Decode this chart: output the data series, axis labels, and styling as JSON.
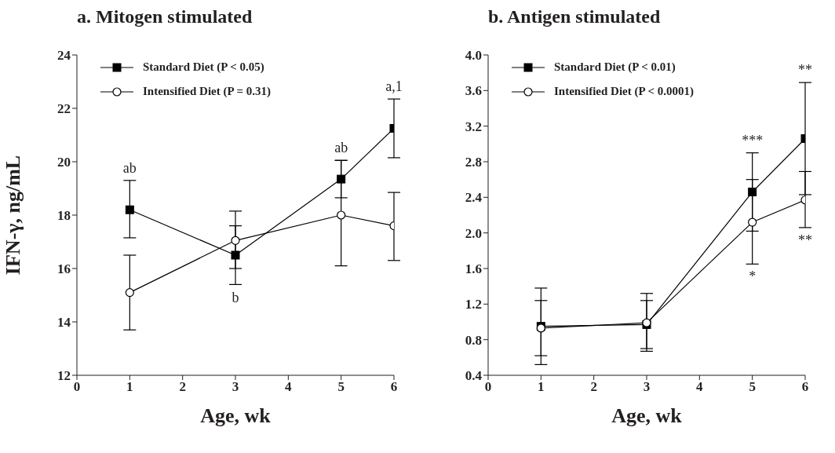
{
  "chart_data": [
    {
      "type": "line",
      "title": "a. Mitogen stimulated",
      "xlabel": "Age, wk",
      "ylabel": "IFN-γ, ng/mL",
      "x": [
        1,
        3,
        5,
        6
      ],
      "xlim": [
        0,
        6
      ],
      "xticks": [
        0,
        1,
        2,
        3,
        4,
        5,
        6
      ],
      "ylim": [
        12,
        24
      ],
      "yticks": [
        12,
        14,
        16,
        18,
        20,
        22,
        24
      ],
      "series": [
        {
          "name": "Standard Diet (P < 0.05)",
          "color": "#000000",
          "marker": "square",
          "values": [
            18.2,
            16.5,
            19.35,
            21.25
          ],
          "errors": [
            [
              17.15,
              19.3
            ],
            [
              15.4,
              17.6
            ],
            [
              18.65,
              20.05
            ],
            [
              20.15,
              22.35
            ]
          ]
        },
        {
          "name": "Intensified Diet (P = 0.31)",
          "color": "#000000",
          "marker": "circle",
          "values": [
            15.1,
            17.05,
            18.0,
            17.6
          ],
          "errors": [
            [
              13.7,
              16.5
            ],
            [
              16.0,
              18.15
            ],
            [
              16.1,
              20.05
            ],
            [
              16.3,
              18.85
            ]
          ]
        }
      ],
      "annotations": [
        {
          "text": "ab",
          "x": 1,
          "y": 18.2
        },
        {
          "text": "b",
          "x": 3,
          "y": 16.5
        },
        {
          "text": "ab",
          "x": 5,
          "y": 19.35
        },
        {
          "text": "a,1",
          "x": 6,
          "y": 21.25
        }
      ],
      "legend": "top left",
      "grid": false
    },
    {
      "type": "line",
      "title": "b. Antigen stimulated",
      "xlabel": "Age, wk",
      "x": [
        1,
        3,
        5,
        6
      ],
      "xlim": [
        0,
        6
      ],
      "xticks": [
        0,
        1,
        2,
        3,
        4,
        5,
        6
      ],
      "ylim": [
        0.4,
        4.0
      ],
      "yticks": [
        {
          "value": 0.4,
          "label": "0.4"
        },
        {
          "value": 0.8,
          "label": "0.8"
        },
        {
          "value": 1.2,
          "label": "1.2"
        },
        {
          "value": 1.6,
          "label": "1.6"
        },
        {
          "value": 2.0,
          "label": "2.0"
        },
        {
          "value": 2.4,
          "label": "2.4"
        },
        {
          "value": 2.8,
          "label": "2.8"
        },
        {
          "value": 3.2,
          "label": "3.2"
        },
        {
          "value": 3.6,
          "label": "3.6"
        },
        {
          "value": 4.0,
          "label": "4.0"
        }
      ],
      "series": [
        {
          "name": "Standard Diet (P < 0.01)",
          "color": "#000000",
          "marker": "square",
          "values": [
            0.95,
            0.97,
            2.46,
            3.06
          ],
          "errors": [
            [
              0.52,
              1.38
            ],
            [
              0.7,
              1.24
            ],
            [
              2.02,
              2.9
            ],
            [
              2.43,
              3.69
            ]
          ]
        },
        {
          "name": "Intensified Diet (P < 0.0001)",
          "color": "#000000",
          "marker": "circle",
          "values": [
            0.93,
            0.99,
            2.12,
            2.37
          ],
          "errors": [
            [
              0.62,
              1.24
            ],
            [
              0.67,
              1.32
            ],
            [
              1.65,
              2.6
            ],
            [
              2.06,
              2.69
            ]
          ]
        }
      ],
      "annotations": [
        {
          "text": "***",
          "x": 5,
          "y": 2.9
        },
        {
          "text": "*",
          "x": 5,
          "y": 1.65
        },
        {
          "text": "**",
          "x": 6,
          "y": 3.69
        },
        {
          "text": "**",
          "x": 6,
          "y": 2.06
        }
      ],
      "legend": "top left",
      "grid": false
    }
  ]
}
